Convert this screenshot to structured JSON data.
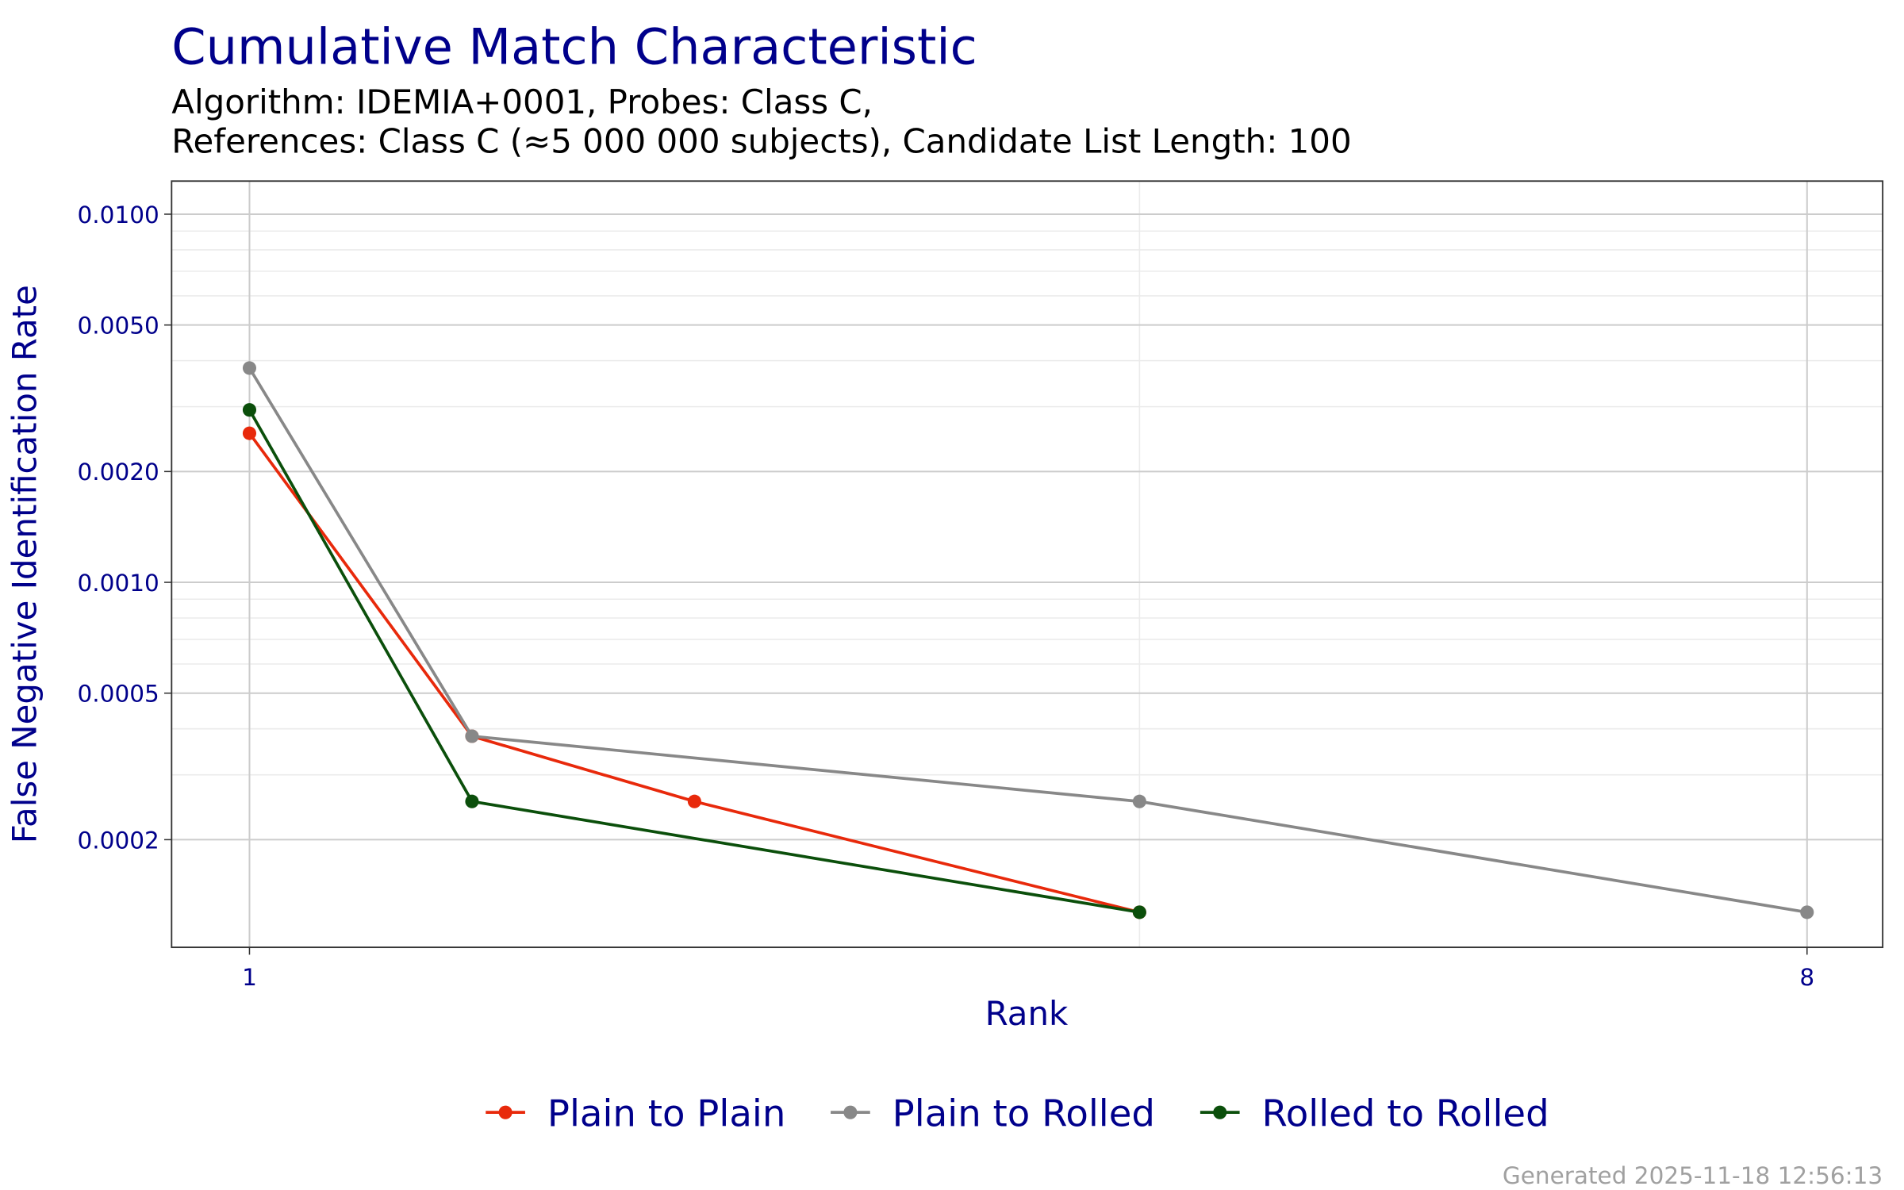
{
  "chart_data": {
    "type": "line",
    "title": "Cumulative Match Characteristic",
    "subtitle_lines": [
      "Algorithm: IDEMIA+0001, Probes: Class C,",
      "References: Class C (≈5 000 000 subjects), Candidate List Length: 100"
    ],
    "xlabel": "Rank",
    "ylabel": "False Negative Identification Rate",
    "x_scale": "linear",
    "y_scale": "log10",
    "xlim": [
      0.65,
      8.34
    ],
    "ylim": [
      0.000102,
      0.0123
    ],
    "x_ticks": [
      1,
      8
    ],
    "x_tick_labels": [
      "1",
      "8"
    ],
    "x_minor_grid": [
      5
    ],
    "y_ticks": [
      0.0002,
      0.0005,
      0.001,
      0.002,
      0.005,
      0.01
    ],
    "y_tick_labels": [
      "0.0002",
      "0.0005",
      "0.0010",
      "0.0020",
      "0.0050",
      "0.0100"
    ],
    "grid": true,
    "legend_position": "bottom",
    "series": [
      {
        "name": "Plain to Plain",
        "color": "#E8290B",
        "x": [
          1,
          2,
          3,
          5
        ],
        "y": [
          0.00254,
          0.000382,
          0.000254,
          0.000127
        ]
      },
      {
        "name": "Plain to Rolled",
        "color": "#888888",
        "x": [
          1,
          2,
          5,
          8
        ],
        "y": [
          0.00382,
          0.000382,
          0.000254,
          0.000127
        ]
      },
      {
        "name": "Rolled to Rolled",
        "color": "#0B4F0B",
        "x": [
          1,
          2,
          5
        ],
        "y": [
          0.00294,
          0.000254,
          0.000127
        ]
      }
    ],
    "footer": "Generated 2025-11-18 12:56:13"
  },
  "colors": {
    "title": "#00008B",
    "axis_text": "#00008B",
    "footer": "#A0A0A0"
  }
}
